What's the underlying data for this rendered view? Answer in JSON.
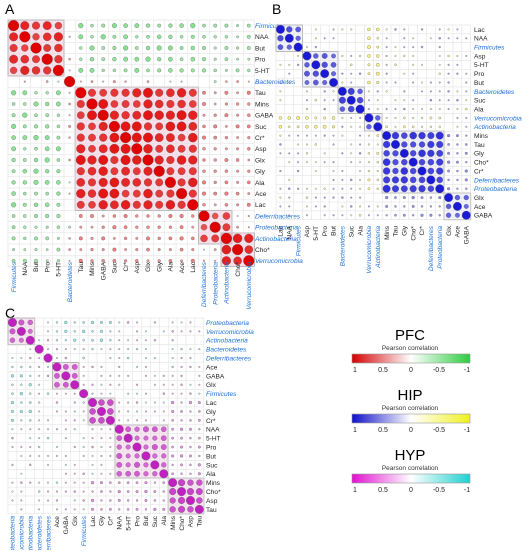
{
  "figure": {
    "chart_data": [
      {
        "panel": "A",
        "type": "heatmap",
        "title": "",
        "row_labels": [
          "Firmicutes",
          "NAA",
          "But",
          "Pro",
          "5-HT",
          "Bacteroidetes",
          "Tau",
          "Mins",
          "GABA",
          "Suc",
          "Cr*",
          "Asp",
          "Glx",
          "Gly",
          "Ala",
          "Ace",
          "Lac",
          "Deferribacteres",
          "Proteobacteria",
          "Actinobacteria",
          "Cho*",
          "Verrucomicrobia"
        ],
        "col_labels": [
          "Firmicutes",
          "NAA",
          "But",
          "Pro",
          "5-HT",
          "Bacteroidetes",
          "Tau",
          "Mins",
          "GABA",
          "Suc",
          "Cr*",
          "Asp",
          "Glx",
          "Gly",
          "Ala",
          "Ace",
          "Lac",
          "Deferribacteres",
          "Proteobacteria",
          "Actinobacteria",
          "Cho*",
          "Verrucomicrobia"
        ],
        "taxa": [
          "Firmicutes",
          "Bacteroidetes",
          "Deferribacteres",
          "Proteobacteria",
          "Actinobacteria",
          "Verrucomicrobia"
        ],
        "clusters": [
          [
            0,
            4
          ],
          [
            6,
            16
          ],
          [
            17,
            19
          ],
          [
            19,
            21
          ]
        ],
        "cluster_color": "#f4a6c8",
        "value_range": [
          -1,
          1
        ],
        "modules": [
          [
            0,
            0,
            4,
            0.85
          ],
          [
            6,
            6,
            16,
            0.9
          ],
          [
            17,
            17,
            19,
            0.7
          ],
          [
            19,
            19,
            21,
            0.85
          ]
        ],
        "cross": [
          [
            0,
            4,
            6,
            16,
            -0.45
          ],
          [
            17,
            21,
            6,
            16,
            0.35
          ],
          [
            17,
            21,
            0,
            4,
            -0.35
          ]
        ],
        "negative_color": "#2ecc40",
        "positive_color": "#e00000",
        "colorbar": {
          "title": "PFC",
          "subtitle": "Pearson correlation",
          "ticks": [
            "1",
            "0.5",
            "0",
            "-0.5",
            "-1"
          ],
          "colors": [
            "#d40000",
            "#ffffff",
            "#2ecc40"
          ]
        }
      },
      {
        "panel": "B",
        "type": "heatmap",
        "title": "",
        "row_labels": [
          "Lac",
          "NAA",
          "Firmicutes",
          "Asp",
          "5-HT",
          "Pro",
          "But",
          "Bacteroidetes",
          "Suc",
          "Ala",
          "Verrucomicrobia",
          "Actinobacteria",
          "Mins",
          "Tau",
          "Gly",
          "Cho*",
          "Cr*",
          "Deferribacteres",
          "Proteobacteria",
          "Glx",
          "Ace",
          "GABA"
        ],
        "col_labels": [
          "Lac",
          "NAA",
          "Firmicutes",
          "Asp",
          "5-HT",
          "Pro",
          "But",
          "Bacteroidetes",
          "Suc",
          "Ala",
          "Verrucomicrobia",
          "Actinobacteria",
          "Mins",
          "Tau",
          "Gly",
          "Cho*",
          "Cr*",
          "Deferribacteres",
          "Proteobacteria",
          "Glx",
          "Ace",
          "GABA"
        ],
        "taxa": [
          "Firmicutes",
          "Bacteroidetes",
          "Verrucomicrobia",
          "Actinobacteria",
          "Deferribacteres",
          "Proteobacteria"
        ],
        "clusters": [
          [
            0,
            2
          ],
          [
            3,
            6
          ],
          [
            7,
            9
          ],
          [
            10,
            11
          ],
          [
            12,
            18
          ],
          [
            19,
            21
          ]
        ],
        "cluster_color": "#dcdcff",
        "value_range": [
          -1,
          1
        ],
        "modules": [
          [
            0,
            0,
            2,
            0.75
          ],
          [
            3,
            3,
            6,
            0.7
          ],
          [
            7,
            7,
            9,
            0.8
          ],
          [
            10,
            10,
            11,
            0.6
          ],
          [
            12,
            12,
            18,
            0.9
          ],
          [
            19,
            19,
            21,
            0.6
          ]
        ],
        "cross": [
          [
            10,
            11,
            0,
            6,
            -0.4
          ],
          [
            12,
            18,
            10,
            11,
            -0.3
          ],
          [
            12,
            18,
            19,
            21,
            0.35
          ]
        ],
        "negative_color": "#f5e51b",
        "positive_color": "#1a1ad6",
        "colorbar": {
          "title": "HIP",
          "subtitle": "Pearson correlation",
          "ticks": [
            "1",
            "0.5",
            "0",
            "-0.5",
            "-1"
          ],
          "colors": [
            "#1010c8",
            "#ffffff",
            "#f0f020"
          ]
        }
      },
      {
        "panel": "C",
        "type": "heatmap",
        "title": "",
        "row_labels": [
          "Proteobacteria",
          "Verrucomicrobia",
          "Actinobacteria",
          "Bacteroidetes",
          "Deferribacteres",
          "Ace",
          "GABA",
          "Glx",
          "Firmicutes",
          "Lac",
          "Gly",
          "Cr*",
          "NAA",
          "5-HT",
          "Pro",
          "But",
          "Suc",
          "Ala",
          "Mins",
          "Cho*",
          "Asp",
          "Tau"
        ],
        "col_labels": [
          "Proteobacteria",
          "Verrucomicrobia",
          "Actinobacteria",
          "Bacteroidetes",
          "Deferribacteres",
          "Ace",
          "GABA",
          "Glx",
          "Firmicutes",
          "Lac",
          "Gly",
          "Cr*",
          "NAA",
          "5-HT",
          "Pro",
          "But",
          "Suc",
          "Ala",
          "Mins",
          "Cho*",
          "Asp",
          "Tau"
        ],
        "taxa": [
          "Proteobacteria",
          "Verrucomicrobia",
          "Actinobacteria",
          "Bacteroidetes",
          "Deferribacteres",
          "Firmicutes"
        ],
        "clusters": [
          [
            0,
            2
          ],
          [
            5,
            7
          ],
          [
            9,
            11
          ],
          [
            12,
            17
          ],
          [
            18,
            21
          ]
        ],
        "cluster_color": "#f2b3e0",
        "value_range": [
          -1,
          1
        ],
        "modules": [
          [
            0,
            0,
            2,
            0.7
          ],
          [
            5,
            5,
            7,
            0.8
          ],
          [
            9,
            9,
            11,
            0.75
          ],
          [
            12,
            12,
            17,
            0.7
          ],
          [
            18,
            18,
            21,
            0.8
          ]
        ],
        "cross": [
          [
            0,
            2,
            5,
            11,
            -0.35
          ],
          [
            18,
            21,
            9,
            17,
            0.35
          ]
        ],
        "negative_color": "#30d0d0",
        "positive_color": "#c020c0",
        "colorbar": {
          "title": "HYP",
          "subtitle": "Pearson correlation",
          "ticks": [
            "1",
            "0.5",
            "0",
            "-0.5",
            "-1"
          ],
          "colors": [
            "#e010d0",
            "#ffffff",
            "#20d0d0"
          ]
        }
      }
    ]
  }
}
